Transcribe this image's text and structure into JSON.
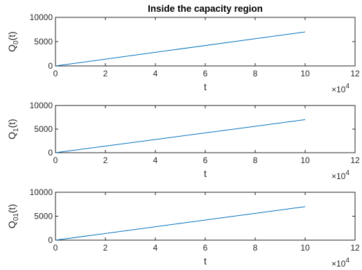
{
  "figure": {
    "title": "Inside the capacity region"
  },
  "chart_data": [
    {
      "type": "line",
      "title": "Inside the capacity region",
      "xlabel": "t",
      "ylabel_main": "Q",
      "ylabel_sub": "0",
      "ylabel_suffix": "(t)",
      "x_multiplier_base": "×10",
      "x_multiplier_exp": "4",
      "xlim": [
        0,
        12
      ],
      "ylim": [
        0,
        10000
      ],
      "xticks": [
        "0",
        "2",
        "4",
        "6",
        "8",
        "10",
        "12"
      ],
      "yticks": [
        "0",
        "5000",
        "10000"
      ],
      "series": [
        {
          "x": [
            0,
            10
          ],
          "y": [
            0,
            7000
          ],
          "color": "#0072BD"
        }
      ]
    },
    {
      "type": "line",
      "xlabel": "t",
      "ylabel_main": "Q",
      "ylabel_sub": "1",
      "ylabel_suffix": "(t)",
      "x_multiplier_base": "×10",
      "x_multiplier_exp": "4",
      "xlim": [
        0,
        12
      ],
      "ylim": [
        0,
        10000
      ],
      "xticks": [
        "0",
        "2",
        "4",
        "6",
        "8",
        "10",
        "12"
      ],
      "yticks": [
        "0",
        "5000",
        "10000"
      ],
      "series": [
        {
          "x": [
            0,
            10
          ],
          "y": [
            0,
            7000
          ],
          "color": "#0072BD"
        }
      ]
    },
    {
      "type": "line",
      "xlabel": "t",
      "ylabel_main": "Q",
      "ylabel_sub": "01",
      "ylabel_suffix": "(t)",
      "x_multiplier_base": "×10",
      "x_multiplier_exp": "4",
      "xlim": [
        0,
        12
      ],
      "ylim": [
        0,
        10000
      ],
      "xticks": [
        "0",
        "2",
        "4",
        "6",
        "8",
        "10",
        "12"
      ],
      "yticks": [
        "0",
        "5000",
        "10000"
      ],
      "series": [
        {
          "x": [
            0,
            10
          ],
          "y": [
            0,
            7000
          ],
          "color": "#0072BD"
        }
      ]
    }
  ]
}
